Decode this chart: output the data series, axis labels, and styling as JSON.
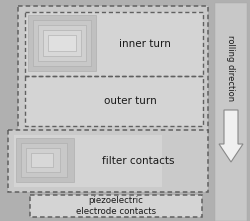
{
  "bg_color": "#b0b0b0",
  "fill_medium": "#bebebe",
  "fill_light": "#cacaca",
  "fill_lighter": "#d4d4d4",
  "dashed_color": "#606060",
  "text_color": "#1a1a1a",
  "arrow_fill": "#f0f0f0",
  "arrow_edge": "#888888",
  "right_panel_color": "#c8c8c8",
  "figsize": [
    2.5,
    2.21
  ],
  "dpi": 100,
  "inner_turn_label": "inner turn",
  "outer_turn_label": "outer turn",
  "filter_contacts_label": "filter contacts",
  "piezo_label": "piezoelectric\nelectrode contacts",
  "rolling_label": "rolling direction",
  "coil_colors": [
    "#c0c0c0",
    "#c8c8c8",
    "#d0d0d0",
    "#d8d8d8",
    "#e0e0e0"
  ]
}
